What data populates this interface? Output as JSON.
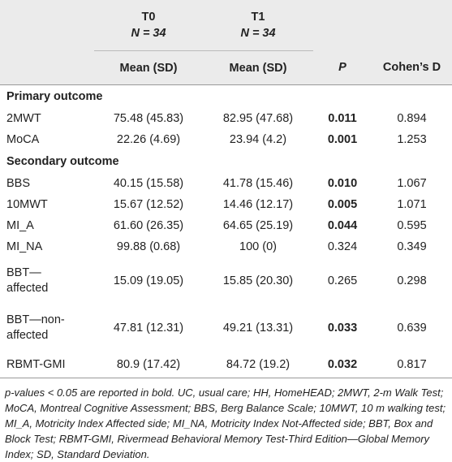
{
  "table": {
    "header": {
      "groups": [
        {
          "label": "T0",
          "n": "N = 34"
        },
        {
          "label": "T1",
          "n": "N = 34"
        }
      ],
      "columns": [
        "Mean (SD)",
        "Mean (SD)",
        "P",
        "Cohen’s D"
      ]
    },
    "sections": [
      {
        "title": "Primary outcome",
        "rows": [
          [
            "2MWT",
            "75.48 (45.83)",
            "82.95 (47.68)",
            "0.011",
            "0.894"
          ],
          [
            "MoCA",
            "22.26 (4.69)",
            "23.94 (4.2)",
            "0.001",
            "1.253"
          ]
        ]
      },
      {
        "title": "Secondary outcome",
        "rows": [
          [
            "BBS",
            "40.15 (15.58)",
            "41.78 (15.46)",
            "0.010",
            "1.067"
          ],
          [
            "10MWT",
            "15.67 (12.52)",
            "14.46 (12.17)",
            "0.005",
            "1.071"
          ],
          [
            "MI_A",
            "61.60 (26.35)",
            "64.65 (25.19)",
            "0.044",
            "0.595"
          ],
          [
            "MI_NA",
            "99.88 (0.68)",
            "100 (0)",
            "0.324",
            "0.349"
          ],
          [
            "BBT—affected",
            "15.09 (19.05)",
            "15.85 (20.30)",
            "0.265",
            "0.298"
          ],
          [
            "BBT—non-affected",
            "47.81 (12.31)",
            "49.21 (13.31)",
            "0.033",
            "0.639"
          ],
          [
            "RBMT-GMI",
            "80.9 (17.42)",
            "84.72 (19.2)",
            "0.032",
            "0.817"
          ]
        ]
      }
    ],
    "footnote": "p-values < 0.05 are reported in bold. UC, usual care; HH, HomeHEAD; 2MWT, 2-m Walk Test; MoCA, Montreal Cognitive Assessment; BBS, Berg Balance Scale; 10MWT, 10 m walking test; MI_A, Motricity Index Affected side; MI_NA, Motricity Index Not-Affected side; BBT, Box and Block Test; RBMT-GMI, Rivermead Behavioral Memory Test-Third Edition—Global Memory Index; SD, Standard Deviation."
  }
}
